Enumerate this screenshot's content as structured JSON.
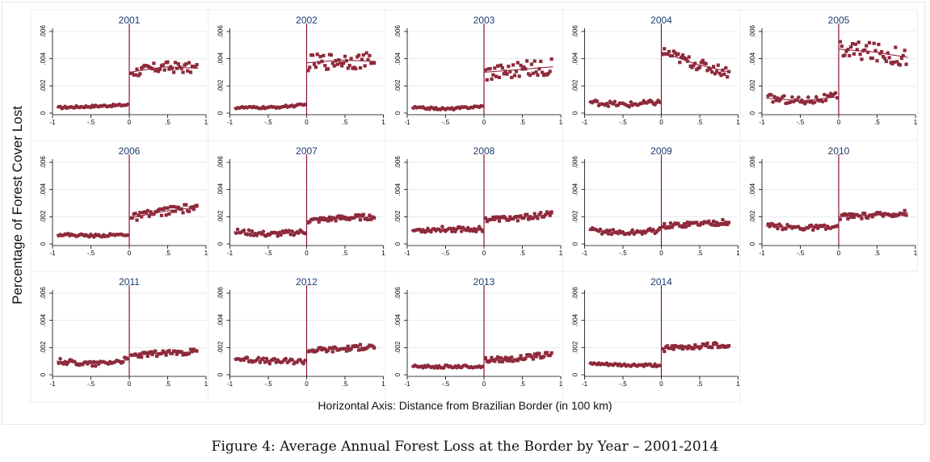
{
  "figure": {
    "ylabel": "Percentage of Forest Cover Lost",
    "xaxis_note": "Horizontal Axis: Distance from Brazilian Border (in 100 km)",
    "caption": "Figure 4: Average Annual Forest Loss at the Border by Year – 2001-2014"
  },
  "colors": {
    "points": "#8e2a3b",
    "cutoff": "#8b1438",
    "title": "#1a3b6e",
    "grid": "#e6eaee"
  },
  "chart_data": {
    "type": "scatter",
    "layout": "small-multiples",
    "xlim": [
      -1,
      1
    ],
    "ylim": [
      0,
      0.006
    ],
    "x_ticks": [
      -1,
      -0.5,
      0,
      0.5,
      1
    ],
    "x_tick_labels": [
      "-1",
      "-.5",
      "0",
      ".5",
      "1"
    ],
    "y_ticks": [
      0,
      0.002,
      0.004,
      0.006
    ],
    "y_tick_labels": [
      "0",
      ".002",
      ".004",
      ".006"
    ],
    "cutoff_x": 0,
    "grid": true,
    "panels": [
      {
        "title": "2001",
        "left": [
          0.0004,
          0.0005,
          0.0006
        ],
        "right": [
          0.003,
          0.0034,
          0.0033
        ],
        "jitter_left": 8e-05,
        "jitter_right": 0.0004
      },
      {
        "title": "2002",
        "left": [
          0.0004,
          0.0004,
          0.0006
        ],
        "right": [
          0.0037,
          0.0039,
          0.0038
        ],
        "jitter_left": 8e-05,
        "jitter_right": 0.0006
      },
      {
        "title": "2003",
        "left": [
          0.0004,
          0.0003,
          0.0005
        ],
        "right": [
          0.003,
          0.0032,
          0.0034
        ],
        "jitter_left": 8e-05,
        "jitter_right": 0.0006
      },
      {
        "title": "2004",
        "left": [
          0.0008,
          0.0006,
          0.0008
        ],
        "right": [
          0.0045,
          0.0036,
          0.003
        ],
        "jitter_left": 0.0002,
        "jitter_right": 0.0004
      },
      {
        "title": "2005",
        "left": [
          0.0011,
          0.0009,
          0.0012
        ],
        "right": [
          0.0047,
          0.0045,
          0.0041
        ],
        "jitter_left": 0.0003,
        "jitter_right": 0.0007
      },
      {
        "title": "2006",
        "left": [
          0.0007,
          0.0006,
          0.0007
        ],
        "right": [
          0.0019,
          0.0024,
          0.0027
        ],
        "jitter_left": 0.0001,
        "jitter_right": 0.0003
      },
      {
        "title": "2007",
        "left": [
          0.0009,
          0.0007,
          0.0009
        ],
        "right": [
          0.0017,
          0.0019,
          0.002
        ],
        "jitter_left": 0.0002,
        "jitter_right": 0.0002
      },
      {
        "title": "2008",
        "left": [
          0.001,
          0.0011,
          0.0011
        ],
        "right": [
          0.0018,
          0.0019,
          0.0022
        ],
        "jitter_left": 0.0002,
        "jitter_right": 0.0002
      },
      {
        "title": "2009",
        "left": [
          0.001,
          0.0008,
          0.001
        ],
        "right": [
          0.0013,
          0.0015,
          0.0016
        ],
        "jitter_left": 0.0002,
        "jitter_right": 0.0002
      },
      {
        "title": "2010",
        "left": [
          0.0013,
          0.0012,
          0.0012
        ],
        "right": [
          0.002,
          0.0021,
          0.0023
        ],
        "jitter_left": 0.0002,
        "jitter_right": 0.0002
      },
      {
        "title": "2011",
        "left": [
          0.001,
          0.0008,
          0.0011
        ],
        "right": [
          0.0014,
          0.0016,
          0.0017
        ],
        "jitter_left": 0.0002,
        "jitter_right": 0.0002
      },
      {
        "title": "2012",
        "left": [
          0.0012,
          0.001,
          0.001
        ],
        "right": [
          0.0018,
          0.0019,
          0.0021
        ],
        "jitter_left": 0.0002,
        "jitter_right": 0.0002
      },
      {
        "title": "2013",
        "left": [
          0.0006,
          0.0006,
          0.0006
        ],
        "right": [
          0.0011,
          0.0012,
          0.0015
        ],
        "jitter_left": 0.0001,
        "jitter_right": 0.0002
      },
      {
        "title": "2014",
        "left": [
          0.0008,
          0.0007,
          0.0007
        ],
        "right": [
          0.0019,
          0.0021,
          0.0022
        ],
        "jitter_left": 0.0001,
        "jitter_right": 0.0002
      }
    ]
  }
}
